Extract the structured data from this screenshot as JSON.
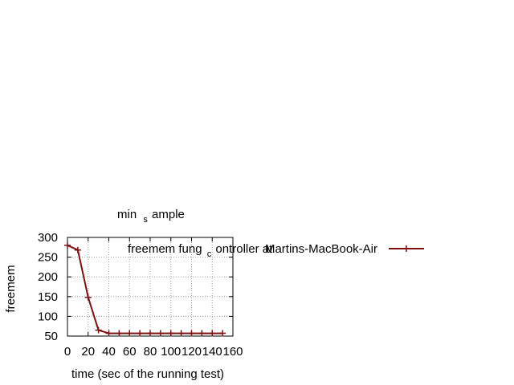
{
  "chart_data": {
    "type": "line",
    "title": {
      "part1": "min",
      "sub": "s",
      "part2": "ample"
    },
    "xlabel": "time (sec of the running test)",
    "ylabel": "freemem",
    "xlim": [
      0,
      160
    ],
    "ylim": [
      50,
      300
    ],
    "x_ticks": [
      "0",
      "20",
      "40",
      "60",
      "80",
      "100",
      "120",
      "140",
      "160"
    ],
    "y_ticks": [
      "50",
      "100",
      "150",
      "200",
      "250",
      "300"
    ],
    "grid": true,
    "legend_position": "top-right",
    "series": [
      {
        "legend": {
          "part1": "freemem  fung",
          "sub": "c",
          "part2": "ontroller at",
          "part3": "Martins-MacBook-Air"
        },
        "color": "#7f1010",
        "marker": "plus",
        "points": [
          [
            0,
            280
          ],
          [
            10,
            268
          ],
          [
            20,
            148
          ],
          [
            30,
            65
          ],
          [
            40,
            57
          ],
          [
            50,
            57
          ],
          [
            60,
            57
          ],
          [
            70,
            57
          ],
          [
            80,
            57
          ],
          [
            90,
            57
          ],
          [
            100,
            57
          ],
          [
            110,
            57
          ],
          [
            120,
            57
          ],
          [
            130,
            57
          ],
          [
            140,
            57
          ],
          [
            150,
            57
          ]
        ]
      }
    ]
  }
}
